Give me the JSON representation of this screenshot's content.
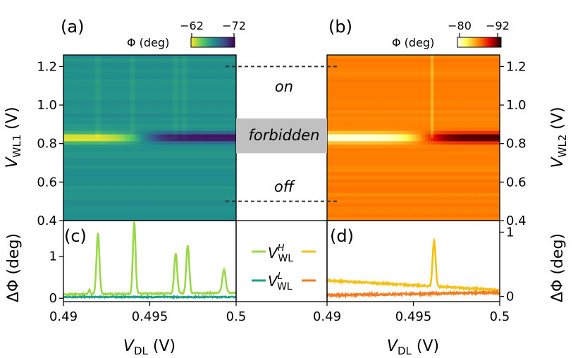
{
  "chart_data": [
    {
      "panel": "(a)",
      "type": "heatmap",
      "colormap": "viridis",
      "colorbar": {
        "label": "Φ (deg)",
        "ticks": [
          "−62",
          "−72"
        ],
        "range": [
          -62,
          -72
        ]
      },
      "x_range": [
        0.49,
        0.5
      ],
      "y_range": [
        0.4,
        1.26
      ],
      "ylabel_main": "V",
      "ylabel_sub": "WL1",
      "ylabel_unit": " (V)",
      "yticks": [
        0.4,
        0.6,
        0.8,
        1.0,
        1.2
      ],
      "ytick_labels": [
        "0.4",
        "0.6",
        "0.8",
        "1.0",
        "1.2"
      ],
      "features": {
        "background_phi": -67,
        "band_center_v": 0.83,
        "band_width_v": 0.05,
        "band_phi_left": -62,
        "band_phi_right": -72,
        "band_transition_x": 0.4945,
        "vertical_lines_x": [
          0.492,
          0.494,
          0.4965,
          0.497
        ]
      }
    },
    {
      "panel": "(b)",
      "type": "heatmap",
      "colormap": "hot",
      "colorbar": {
        "label": "Φ (deg)",
        "ticks": [
          "−80",
          "−92"
        ],
        "range": [
          -80,
          -92
        ]
      },
      "x_range": [
        0.49,
        0.5
      ],
      "y_range": [
        0.4,
        1.26
      ],
      "ylabel_main": "V",
      "ylabel_sub": "WL2",
      "ylabel_unit": " (V)",
      "yticks": [
        0.4,
        0.6,
        0.8,
        1.0,
        1.2
      ],
      "ytick_labels": [
        "0.4",
        "0.6",
        "0.8",
        "1.0",
        "1.2"
      ],
      "features": {
        "background_phi": -86,
        "band_center_v": 0.83,
        "band_width_v": 0.05,
        "band_phi_left": -80,
        "band_phi_right": -92,
        "band_transition_x": 0.4955,
        "vertical_lines_x": [
          0.4961
        ]
      }
    },
    {
      "panel": "states",
      "type": "table",
      "labels": {
        "on": "on",
        "forbidden": "forbidden",
        "off": "off"
      },
      "dashed_levels_v": [
        1.2,
        0.5
      ],
      "forbidden_range_v": [
        0.75,
        0.93
      ]
    },
    {
      "panel": "(c)",
      "type": "line",
      "xlabel_main": "V",
      "xlabel_sub": "DL",
      "xlabel_unit": " (V)",
      "ylabel": "ΔΦ (deg)",
      "x_range": [
        0.49,
        0.5
      ],
      "y_range": [
        -0.08,
        1.85
      ],
      "xticks": [
        0.49,
        0.495,
        0.5
      ],
      "xtick_labels": [
        "0.49",
        "0.495",
        "0.5"
      ],
      "yticks": [
        0,
        1
      ],
      "ytick_labels": [
        "0",
        "1"
      ],
      "series": [
        {
          "base": 0.09,
          "slope": 0.04,
          "noise": 0.015,
          "peaks": [
            [
              0.4915,
              0.1,
              8e-05
            ],
            [
              0.492,
              1.45,
              0.00012
            ],
            [
              0.4941,
              1.7,
              0.00011
            ],
            [
              0.4965,
              0.95,
              0.00012
            ],
            [
              0.4972,
              1.15,
              0.00012
            ],
            [
              0.4993,
              0.55,
              0.00014
            ]
          ]
        },
        {
          "base": 0.03,
          "slope": 0.0,
          "noise": 0.012,
          "peaks": []
        }
      ]
    },
    {
      "panel": "(d)",
      "type": "line",
      "xlabel_main": "V",
      "xlabel_sub": "DL",
      "xlabel_unit": " (V)",
      "ylabel": "ΔΦ (deg)",
      "x_range": [
        0.49,
        0.5
      ],
      "y_range": [
        -0.08,
        1.18
      ],
      "xticks": [
        0.49,
        0.495,
        0.5
      ],
      "xtick_labels": [
        "0.49",
        "0.495",
        "0.5"
      ],
      "yticks": [
        0,
        1
      ],
      "ytick_labels": [
        "0",
        "1"
      ],
      "series": [
        {
          "base": 0.25,
          "slope": -0.15,
          "noise": 0.012,
          "peaks": [
            [
              0.4962,
              0.72,
              0.00012
            ]
          ]
        },
        {
          "base": 0.02,
          "slope": 0.04,
          "noise": 0.015,
          "peaks": []
        }
      ]
    },
    {
      "panel": "legend",
      "type": "table",
      "entries": [
        {
          "main": "V",
          "sup": "H",
          "sub": "WL"
        },
        {
          "main": "V",
          "sup": "L",
          "sub": "WL"
        }
      ]
    }
  ],
  "colors": {
    "c_high": "#9ad84a",
    "c_low": "#1f9e89",
    "d_high": "#f6c114",
    "d_low": "#f47c20",
    "forbidden_fill": "#c0c0c0"
  }
}
